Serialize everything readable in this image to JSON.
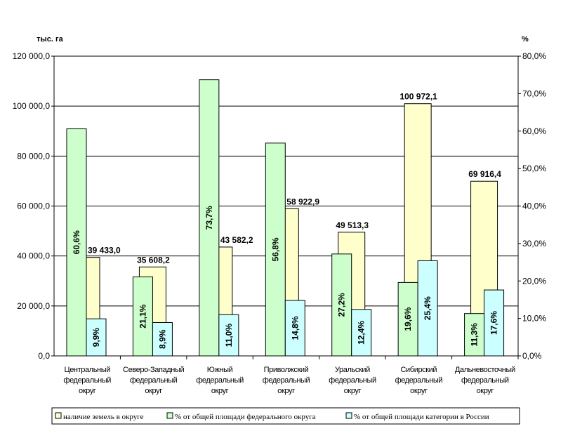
{
  "chart_data": {
    "type": "bar",
    "left_unit": "тыс. га",
    "right_unit": "%",
    "categories": [
      [
        "Центральный",
        "федеральный",
        "округ"
      ],
      [
        "Северо-Западный",
        "федеральный",
        "округ"
      ],
      [
        "Южный",
        "федеральный",
        "округ"
      ],
      [
        "Приволжский",
        "федеральный",
        "округ"
      ],
      [
        "Уральский",
        "федеральный",
        "округ"
      ],
      [
        "Сибирский",
        "федеральный",
        "округ"
      ],
      [
        "Дальневосточный",
        "федеральный",
        "округ"
      ]
    ],
    "left_ylim": [
      0,
      120000
    ],
    "right_ylim": [
      0,
      80
    ],
    "left_ticks": [
      "0,0",
      "20 000,0",
      "40 000,0",
      "60 000,0",
      "80 000,0",
      "100 000,0",
      "120 000,0"
    ],
    "right_ticks": [
      "0,0%",
      "10,0%",
      "20,0%",
      "30,0%",
      "40,0%",
      "50,0%",
      "60,0%",
      "70,0%",
      "80,0%"
    ],
    "grid": true,
    "legend_position": "bottom",
    "series": [
      {
        "name": "наличие земель в округе",
        "axis": "left",
        "color": "#FFFFCC",
        "values": [
          39433.0,
          35608.2,
          43582.2,
          58922.9,
          49513.3,
          100972.1,
          69916.4
        ],
        "labels": [
          "39 433,0",
          "35 608,2",
          "43 582,2",
          "58 922,9",
          "49 513,3",
          "100 972,1",
          "69 916,4"
        ]
      },
      {
        "name": "% от общей площади федерального округа",
        "axis": "right",
        "color": "#CCFFCC",
        "values": [
          60.6,
          21.1,
          73.7,
          56.8,
          27.2,
          19.6,
          11.3
        ],
        "labels": [
          "60,6%",
          "21,1%",
          "73,7%",
          "56,8%",
          "27,2%",
          "19,6%",
          "11,3%"
        ]
      },
      {
        "name": "% от общей площади категории в России",
        "axis": "right",
        "color": "#CCFFFF",
        "values": [
          9.9,
          8.9,
          11.0,
          14.8,
          12.4,
          25.4,
          17.6
        ],
        "labels": [
          "9,9%",
          "8,9%",
          "11,0%",
          "14,8%",
          "12,4%",
          "25,4%",
          "17,6%"
        ]
      }
    ]
  }
}
